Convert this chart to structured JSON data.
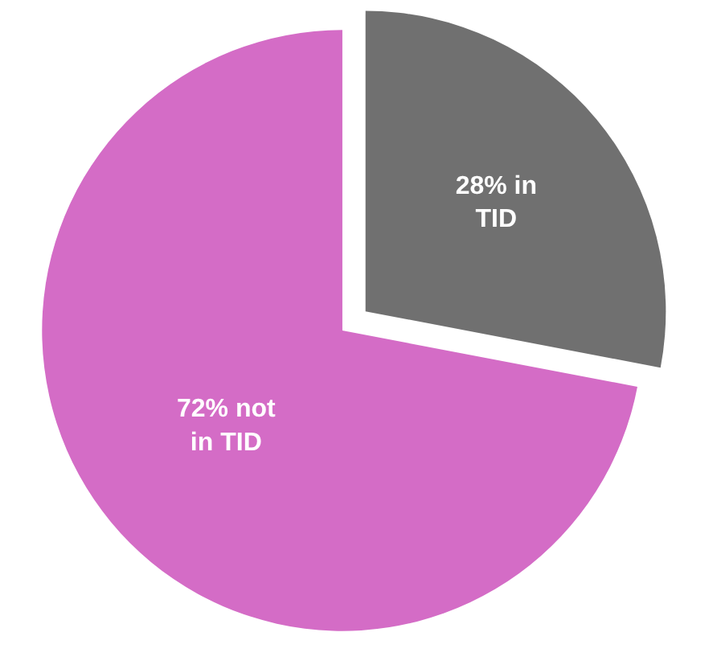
{
  "chart_data": {
    "type": "pie",
    "categories": [
      "28% in TID",
      "72% not in TID"
    ],
    "values": [
      28,
      72
    ],
    "colors": [
      "#707070",
      "#d46cc6"
    ]
  }
}
